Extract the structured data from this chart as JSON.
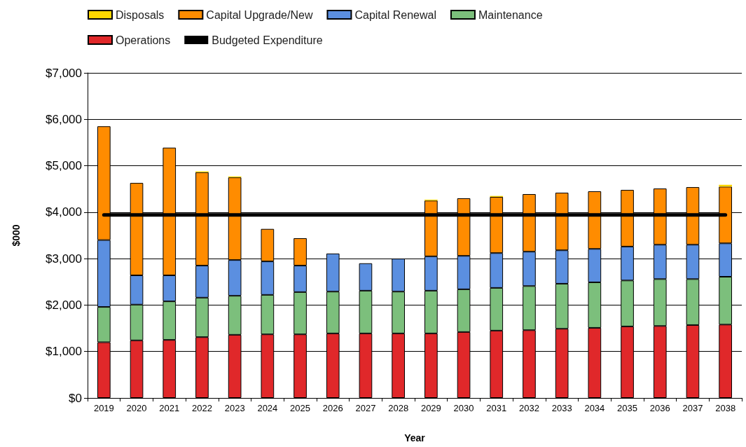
{
  "chart_data": {
    "type": "bar",
    "stacked": true,
    "xlabel": "Year",
    "ylabel": "$000",
    "categories": [
      "2019",
      "2020",
      "2021",
      "2022",
      "2023",
      "2024",
      "2025",
      "2026",
      "2027",
      "2028",
      "2029",
      "2030",
      "2031",
      "2032",
      "2033",
      "2034",
      "2035",
      "2036",
      "2037",
      "2038"
    ],
    "series": [
      {
        "name": "Operations",
        "color": "#e0282a",
        "values": [
          1200,
          1240,
          1250,
          1310,
          1360,
          1370,
          1370,
          1390,
          1390,
          1390,
          1390,
          1420,
          1450,
          1460,
          1490,
          1510,
          1540,
          1550,
          1570,
          1580
        ]
      },
      {
        "name": "Maintenance",
        "color": "#7cbf7c",
        "values": [
          760,
          770,
          830,
          850,
          840,
          850,
          910,
          900,
          920,
          900,
          920,
          920,
          920,
          950,
          970,
          980,
          990,
          1010,
          990,
          1030
        ]
      },
      {
        "name": "Capital Renewal",
        "color": "#5b8fe0",
        "values": [
          1440,
          630,
          560,
          690,
          770,
          720,
          570,
          820,
          590,
          710,
          740,
          720,
          750,
          740,
          720,
          720,
          730,
          740,
          740,
          720
        ]
      },
      {
        "name": "Capital Upgrade/New",
        "color": "#ff8c00",
        "values": [
          2450,
          1990,
          2750,
          2010,
          1780,
          700,
          590,
          null,
          null,
          null,
          1200,
          1240,
          1210,
          1240,
          1240,
          1240,
          1220,
          1210,
          1240,
          1220
        ]
      },
      {
        "name": "Disposals",
        "color": "#ffd700",
        "values": [
          null,
          null,
          null,
          20,
          20,
          null,
          null,
          null,
          null,
          null,
          20,
          null,
          20,
          null,
          null,
          null,
          null,
          null,
          null,
          40
        ]
      },
      {
        "name": "Budgeted Expenditure",
        "type": "line",
        "color": "#000000",
        "marker": "none",
        "line_style": "solid",
        "values": [
          3940,
          3940,
          3940,
          3940,
          3940,
          3940,
          3940,
          3940,
          3940,
          3940,
          3940,
          3940,
          3940,
          3940,
          3940,
          3940,
          3940,
          3940,
          3940,
          3940
        ]
      }
    ],
    "ylim": [
      0,
      7000
    ],
    "yticks": [
      {
        "value": 0,
        "label": "$0"
      },
      {
        "value": 1000,
        "label": "$1,000"
      },
      {
        "value": 2000,
        "label": "$2,000"
      },
      {
        "value": 3000,
        "label": "$3,000"
      },
      {
        "value": 4000,
        "label": "$4,000"
      },
      {
        "value": 5000,
        "label": "$5,000"
      },
      {
        "value": 6000,
        "label": "$6,000"
      },
      {
        "value": 7000,
        "label": "$7,000"
      }
    ],
    "grid": "y",
    "legend": "top"
  }
}
